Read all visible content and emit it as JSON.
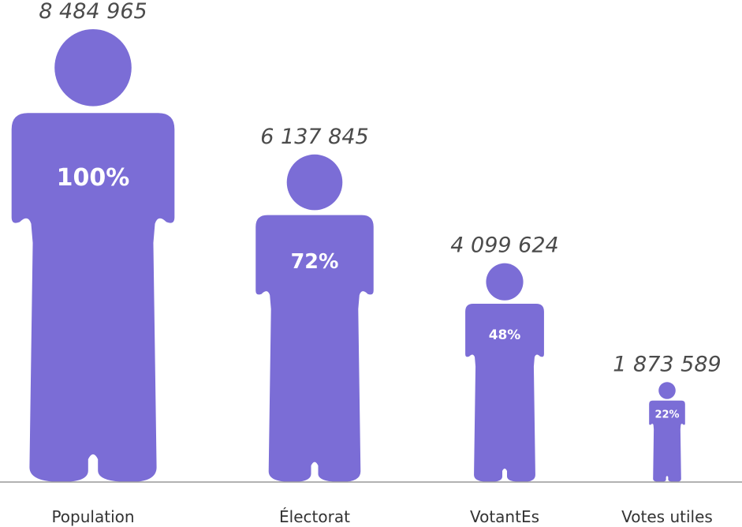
{
  "colors": {
    "figure": "#7b6dd6",
    "baseline": "#999999",
    "count_text": "#4b4b4b",
    "category_text": "#333333",
    "percent_text": "#ffffff"
  },
  "chart_data": {
    "type": "bar",
    "style": "pictograph-person",
    "title": "",
    "xlabel": "",
    "ylabel": "",
    "categories": [
      "Population",
      "Électorat",
      "VotantEs",
      "Votes utiles"
    ],
    "values": [
      8484965,
      6137845,
      4099624,
      1873589
    ],
    "value_labels": [
      "8 484 965",
      "6 137 845",
      "4 099 624",
      "1 873 589"
    ],
    "percent_labels": [
      "100%",
      "72%",
      "48%",
      "22%"
    ],
    "percents": [
      100,
      72,
      48,
      22
    ],
    "ylim": [
      0,
      8484965
    ],
    "grid": false,
    "legend": "none"
  }
}
